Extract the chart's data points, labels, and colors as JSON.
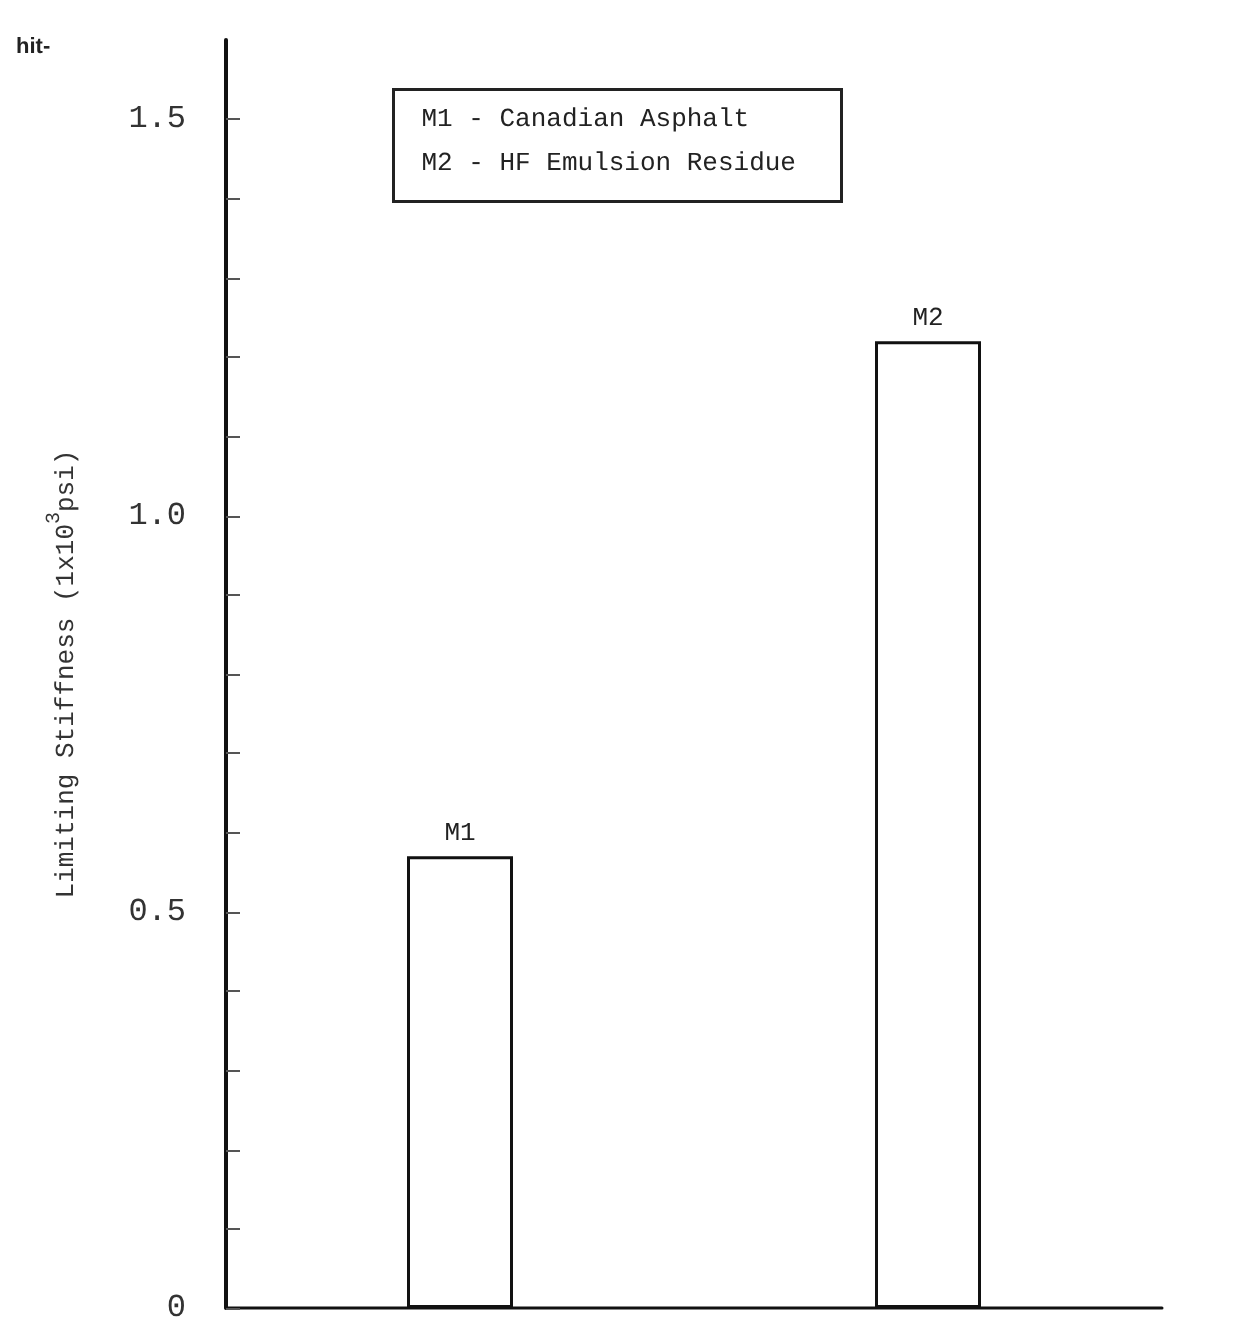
{
  "chart_data": {
    "type": "bar",
    "ylabel": "Limiting Stiffness (1x10$^{3}$psi)",
    "categories": [
      "M1",
      "M2"
    ],
    "values": [
      0.57,
      1.22
    ],
    "color": "#ffffff",
    "ylim": [
      0,
      1.6
    ],
    "yticks": [
      0,
      {
        "value": 0.1,
        "label": null
      },
      {
        "value": 0.2,
        "label": null
      },
      {
        "value": 0.3,
        "label": null
      },
      {
        "value": 0.4,
        "label": null
      },
      {
        "value": 0.5,
        "label": "0.5"
      },
      {
        "value": 0.6,
        "label": null
      },
      {
        "value": 0.7,
        "label": null
      },
      {
        "value": 0.8,
        "label": null
      },
      {
        "value": 0.9,
        "label": null
      },
      {
        "value": 1,
        "label": "1.0"
      },
      {
        "value": 1.1,
        "label": null
      },
      {
        "value": 1.2,
        "label": null
      },
      {
        "value": 1.3,
        "label": null
      },
      {
        "value": 1.4,
        "label": null
      },
      {
        "value": 1.5,
        "label": "1.5"
      }
    ],
    "tick_labels": "y",
    "grid": false,
    "annotations": [
      "hit-",
      "M1 - Canadian Asphalt",
      "M2 - HF Emulsion Residue"
    ]
  }
}
